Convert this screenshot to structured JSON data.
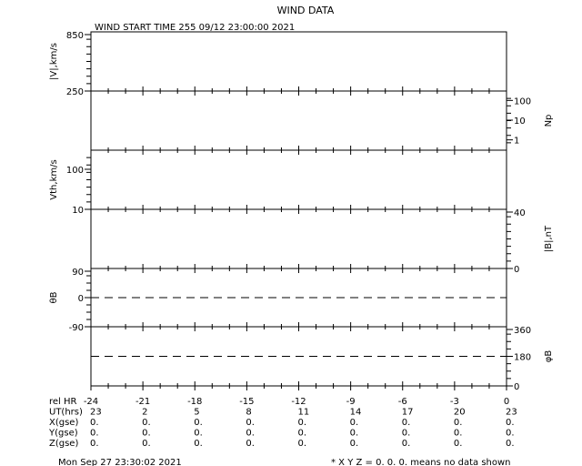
{
  "title": "WIND DATA",
  "start_time": "WIND START TIME 255 09/12 23:00:00 2021",
  "footer_date": "Mon Sep 27 23:30:02 2021",
  "footer_note": "* X Y Z = 0. 0. 0. means no data shown",
  "chart_data": {
    "type": "line",
    "x_range": [
      -24,
      0
    ],
    "panels": [
      {
        "ylabel": "|V|,km/s",
        "side": "left",
        "scale": "linear",
        "ylim": [
          250,
          850
        ],
        "ticks": [
          "850",
          "250"
        ],
        "tick_values": [
          850,
          250
        ],
        "series": []
      },
      {
        "ylabel": "Np",
        "side": "right",
        "scale": "log",
        "ylim": [
          0.3,
          300
        ],
        "ticks": [
          "100",
          "10",
          "1"
        ],
        "tick_values": [
          100,
          10,
          1
        ],
        "series": []
      },
      {
        "ylabel": "Vth,km/s",
        "side": "left",
        "scale": "log",
        "ylim": [
          10,
          300
        ],
        "ticks": [
          "100",
          "10"
        ],
        "tick_values": [
          100,
          10
        ],
        "series": []
      },
      {
        "ylabel": "|B|,nT",
        "side": "right",
        "scale": "linear",
        "ylim": [
          0,
          40
        ],
        "ticks": [
          "40",
          "0"
        ],
        "tick_values": [
          40,
          0
        ],
        "series": []
      },
      {
        "ylabel": "θB",
        "side": "left",
        "scale": "linear",
        "ylim": [
          -90,
          90
        ],
        "ticks": [
          "90",
          "0",
          "-90"
        ],
        "tick_values": [
          90,
          0,
          -90
        ],
        "dashed_reference": 0,
        "series": []
      },
      {
        "ylabel": "φB",
        "side": "right",
        "scale": "linear",
        "ylim": [
          0,
          360
        ],
        "ticks": [
          "360",
          "180",
          "0"
        ],
        "tick_values": [
          360,
          180,
          0
        ],
        "dashed_reference": 180,
        "series": []
      }
    ],
    "table": {
      "row_labels": [
        "rel HR",
        "UT(hrs)",
        "X(gse)",
        "Y(gse)",
        "Z(gse)"
      ],
      "rel_hr": [
        "-24",
        "-21",
        "-18",
        "-15",
        "-12",
        "-9",
        "-6",
        "-3",
        "0"
      ],
      "ut_hrs": [
        "23",
        "2",
        "5",
        "8",
        "11",
        "14",
        "17",
        "20",
        "23"
      ],
      "x_gse": [
        "0.",
        "0.",
        "0.",
        "0.",
        "0.",
        "0.",
        "0.",
        "0.",
        "0."
      ],
      "y_gse": [
        "0.",
        "0.",
        "0.",
        "0.",
        "0.",
        "0.",
        "0.",
        "0.",
        "0."
      ],
      "z_gse": [
        "0.",
        "0.",
        "0.",
        "0.",
        "0.",
        "0.",
        "0.",
        "0.",
        "0."
      ]
    }
  }
}
